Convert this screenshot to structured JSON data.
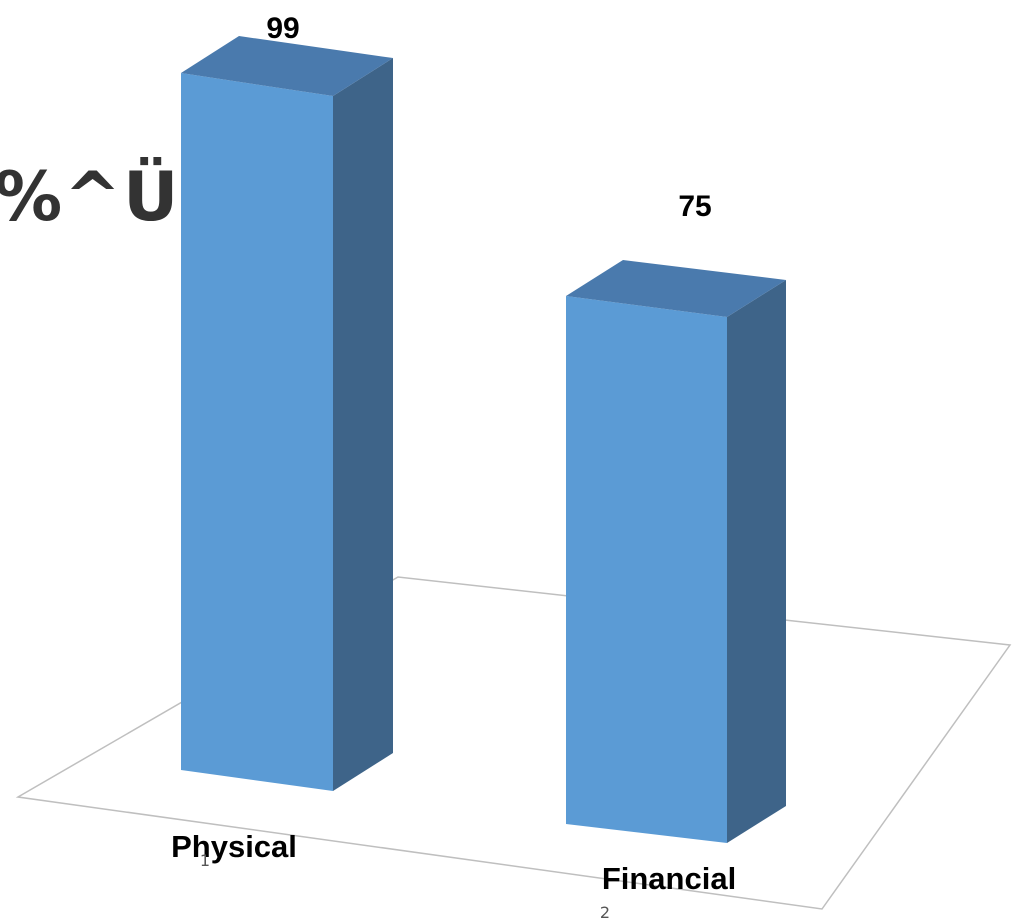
{
  "title_fragment": "%^Ü",
  "colors": {
    "bar_front": "#5b9bd5",
    "bar_side": "#3e6489",
    "bar_top": "#4a7aad",
    "floor_line": "#bfbfbf",
    "text": "#000000"
  },
  "chart_data": {
    "type": "bar",
    "three_d": true,
    "categories": [
      "Physical",
      "Financial"
    ],
    "tick_labels": [
      "1",
      "2"
    ],
    "values": [
      99,
      75
    ],
    "data_labels": [
      "99",
      "75"
    ],
    "title": "",
    "xlabel": "",
    "ylabel": "",
    "ylim": [
      0,
      100
    ],
    "grid": false,
    "legend": "none"
  }
}
